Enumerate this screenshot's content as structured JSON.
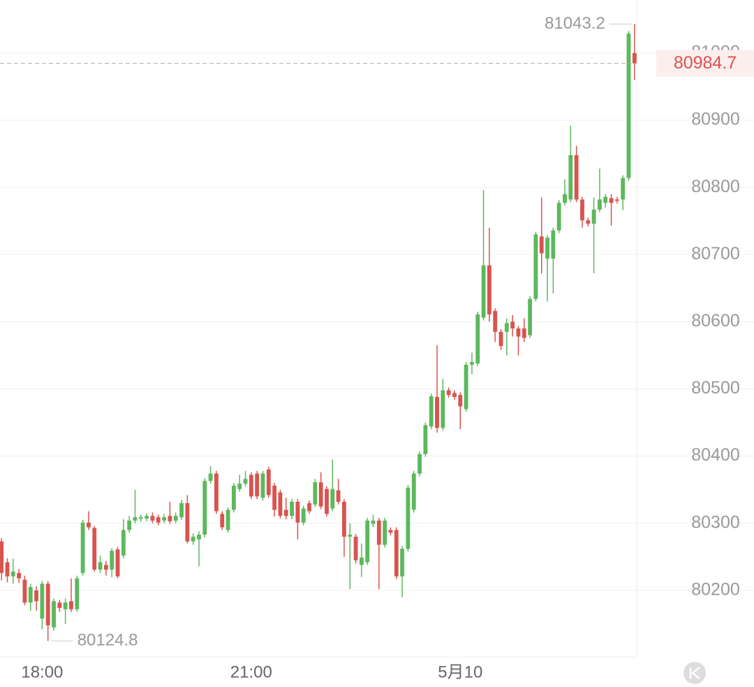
{
  "chart_data": {
    "type": "candlestick",
    "categories": [
      null,
      null,
      null,
      null,
      null,
      null,
      null,
      "18:00",
      null,
      null,
      null,
      null,
      null,
      null,
      null,
      null,
      null,
      null,
      null,
      null,
      null,
      null,
      null,
      null,
      null,
      null,
      null,
      null,
      null,
      null,
      null,
      null,
      null,
      null,
      null,
      null,
      null,
      null,
      null,
      null,
      null,
      null,
      null,
      "21:00",
      null,
      null,
      null,
      null,
      null,
      null,
      null,
      null,
      null,
      null,
      null,
      null,
      null,
      null,
      null,
      null,
      null,
      null,
      null,
      null,
      null,
      null,
      null,
      null,
      null,
      null,
      null,
      null,
      null,
      null,
      null,
      null,
      null,
      null,
      null,
      "5月10",
      null,
      null,
      null,
      null,
      null,
      null,
      null,
      null,
      null,
      null,
      null,
      null,
      null,
      null,
      null,
      null,
      null,
      null,
      null,
      null,
      null,
      null,
      null,
      null,
      null,
      null,
      null,
      null,
      null,
      null
    ],
    "open": [
      80273,
      80242,
      80221,
      80226,
      80216,
      80182,
      80200,
      80158,
      80210,
      80145,
      80182,
      80172,
      80184,
      80172,
      80226,
      80301,
      80293,
      80231,
      80238,
      80231,
      80261,
      80252,
      80290,
      80304,
      80307,
      80307,
      80311,
      80309,
      80304,
      80311,
      80304,
      80309,
      80330,
      80273,
      80276,
      80283,
      80363,
      80374,
      80314,
      80290,
      80320,
      80351,
      80359,
      80372,
      80374,
      80338,
      80380,
      80356,
      80346,
      80320,
      80311,
      80332,
      80301,
      80330,
      80328,
      80361,
      80351,
      80322,
      80349,
      80332,
      80280,
      80280,
      80238,
      80242,
      80299,
      80304,
      80268,
      80290,
      80290,
      80221,
      80262,
      80320,
      80374,
      80403,
      80444,
      80488,
      80442,
      80498,
      80494,
      80491,
      80470,
      80536,
      80538,
      80606,
      80684,
      80616,
      80585,
      80585,
      80600,
      80590,
      80590,
      80580,
      80634,
      80727,
      80694,
      80694,
      80736,
      80777,
      80782,
      80848,
      80782,
      80751,
      80746,
      80767,
      80777,
      80784,
      80782,
      80782,
      80814,
      81000
    ],
    "high": [
      80278,
      80248,
      80247,
      80232,
      80222,
      80210,
      80206,
      80214,
      80214,
      80188,
      80186,
      80188,
      80218,
      80222,
      80305,
      80318,
      80296,
      80252,
      80244,
      80263,
      80265,
      80306,
      80311,
      80350,
      80313,
      80315,
      80316,
      80313,
      80314,
      80332,
      80316,
      80335,
      80342,
      80285,
      80288,
      80367,
      80385,
      80378,
      80318,
      80324,
      80360,
      80372,
      80378,
      80376,
      80378,
      80378,
      80384,
      80360,
      80350,
      80338,
      80336,
      80336,
      80326,
      80334,
      80366,
      80376,
      80355,
      80395,
      80366,
      80336,
      80300,
      80284,
      80270,
      80308,
      80313,
      80308,
      80308,
      80294,
      80294,
      80266,
      80357,
      80378,
      80407,
      80450,
      80493,
      80565,
      80515,
      80502,
      80498,
      80495,
      80540,
      80554,
      80615,
      80796,
      80740,
      80620,
      80589,
      80605,
      80610,
      80594,
      80605,
      80638,
      80734,
      80785,
      80729,
      80740,
      80781,
      80812,
      80892,
      80862,
      80786,
      80755,
      80785,
      80828,
      80790,
      80790,
      80786,
      80818,
      81033,
      81043.2
    ],
    "low": [
      80215,
      80212,
      80210,
      80211,
      80178,
      80170,
      80170,
      80142,
      80124.8,
      80140,
      80168,
      80150,
      80168,
      80168,
      80222,
      80290,
      80228,
      80226,
      80222,
      80220,
      80218,
      80248,
      80286,
      80300,
      80302,
      80303,
      80300,
      80297,
      80300,
      80299,
      80300,
      80305,
      80270,
      80268,
      80236,
      80279,
      80359,
      80314,
      80290,
      80286,
      80316,
      80347,
      80355,
      80336,
      80336,
      80334,
      80338,
      80310,
      80307,
      80306,
      80306,
      80276,
      80297,
      80314,
      80324,
      80321,
      80310,
      80318,
      80328,
      80250,
      80202,
      80240,
      80220,
      80238,
      80294,
      80202,
      80264,
      80282,
      80217,
      80190,
      80258,
      80316,
      80370,
      80399,
      80440,
      80435,
      80438,
      80487,
      80484,
      80440,
      80466,
      80522,
      80534,
      80602,
      80600,
      80570,
      80558,
      80550,
      80578,
      80550,
      80570,
      80576,
      80630,
      80672,
      80630,
      80642,
      80732,
      80773,
      80778,
      80778,
      80740,
      80742,
      80672,
      80763,
      80770,
      80743,
      80776,
      80766,
      80810,
      80960
    ],
    "close": [
      80226,
      80221,
      80228,
      80218,
      80182,
      80205,
      80184,
      80210,
      80148,
      80184,
      80174,
      80182,
      80172,
      80218,
      80301,
      80294,
      80231,
      80242,
      80231,
      80259,
      80221,
      80290,
      80304,
      80309,
      80309,
      80311,
      80304,
      80301,
      80309,
      80303,
      80311,
      80330,
      80273,
      80280,
      80283,
      80363,
      80374,
      80318,
      80294,
      80320,
      80356,
      80359,
      80366,
      80340,
      80340,
      80374,
      80342,
      80320,
      80311,
      80311,
      80332,
      80301,
      80322,
      80318,
      80361,
      80325,
      80314,
      80351,
      80332,
      80280,
      80283,
      80245,
      80249,
      80304,
      80304,
      80268,
      80304,
      80286,
      80221,
      80262,
      80353,
      80374,
      80403,
      80446,
      80489,
      80442,
      80498,
      80491,
      80488,
      80474,
      80536,
      80540,
      80611,
      80684,
      80611,
      80585,
      80564,
      80598,
      80590,
      80578,
      80576,
      80634,
      80730,
      80702,
      80725,
      80736,
      80777,
      80790,
      80848,
      80782,
      80751,
      80746,
      80767,
      80782,
      80786,
      80777,
      80780,
      80814,
      81029,
      80984.7
    ],
    "up_color": "#5cb85c",
    "down_color": "#d9534f",
    "ylim": [
      80101,
      81079
    ],
    "yticks": [
      80200,
      80300,
      80400,
      80500,
      80600,
      80700,
      80800,
      80900,
      81000
    ],
    "grid": true
  }
}
